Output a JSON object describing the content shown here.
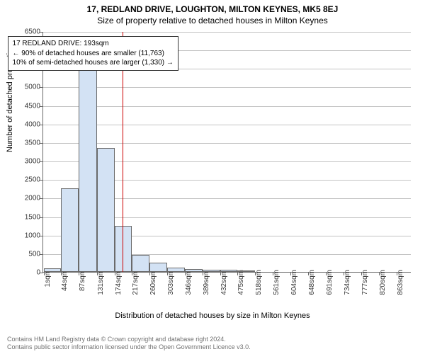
{
  "chart": {
    "type": "histogram",
    "title_main": "17, REDLAND DRIVE, LOUGHTON, MILTON KEYNES, MK5 8EJ",
    "title_sub": "Size of property relative to detached houses in Milton Keynes",
    "title_fontsize": 12,
    "ylabel": "Number of detached properties",
    "xlabel": "Distribution of detached houses by size in Milton Keynes",
    "label_fontsize": 11,
    "ylim": [
      0,
      6500
    ],
    "ytick_step": 500,
    "xtick_labels": [
      "1sqm",
      "44sqm",
      "87sqm",
      "131sqm",
      "174sqm",
      "217sqm",
      "260sqm",
      "303sqm",
      "346sqm",
      "389sqm",
      "432sqm",
      "475sqm",
      "518sqm",
      "561sqm",
      "604sqm",
      "648sqm",
      "691sqm",
      "734sqm",
      "777sqm",
      "820sqm",
      "863sqm"
    ],
    "bar_values": [
      100,
      2250,
      5500,
      3350,
      1250,
      450,
      250,
      120,
      80,
      60,
      50,
      30,
      0,
      0,
      0,
      0,
      0,
      0,
      0,
      0
    ],
    "bar_fill": "#d3e2f4",
    "bar_stroke": "#6a6a6a",
    "grid_color": "#888888",
    "background_color": "#ffffff",
    "refline_value_sqm": 193,
    "refline_color": "#cc0000",
    "annotation": {
      "line1": "17 REDLAND DRIVE: 193sqm",
      "line2": "← 90% of detached houses are smaller (11,763)",
      "line3": "10% of semi-detached houses are larger (1,330) →"
    },
    "footer_line1": "Contains HM Land Registry data © Crown copyright and database right 2024.",
    "footer_line2": "Contains public sector information licensed under the Open Government Licence v3.0."
  }
}
